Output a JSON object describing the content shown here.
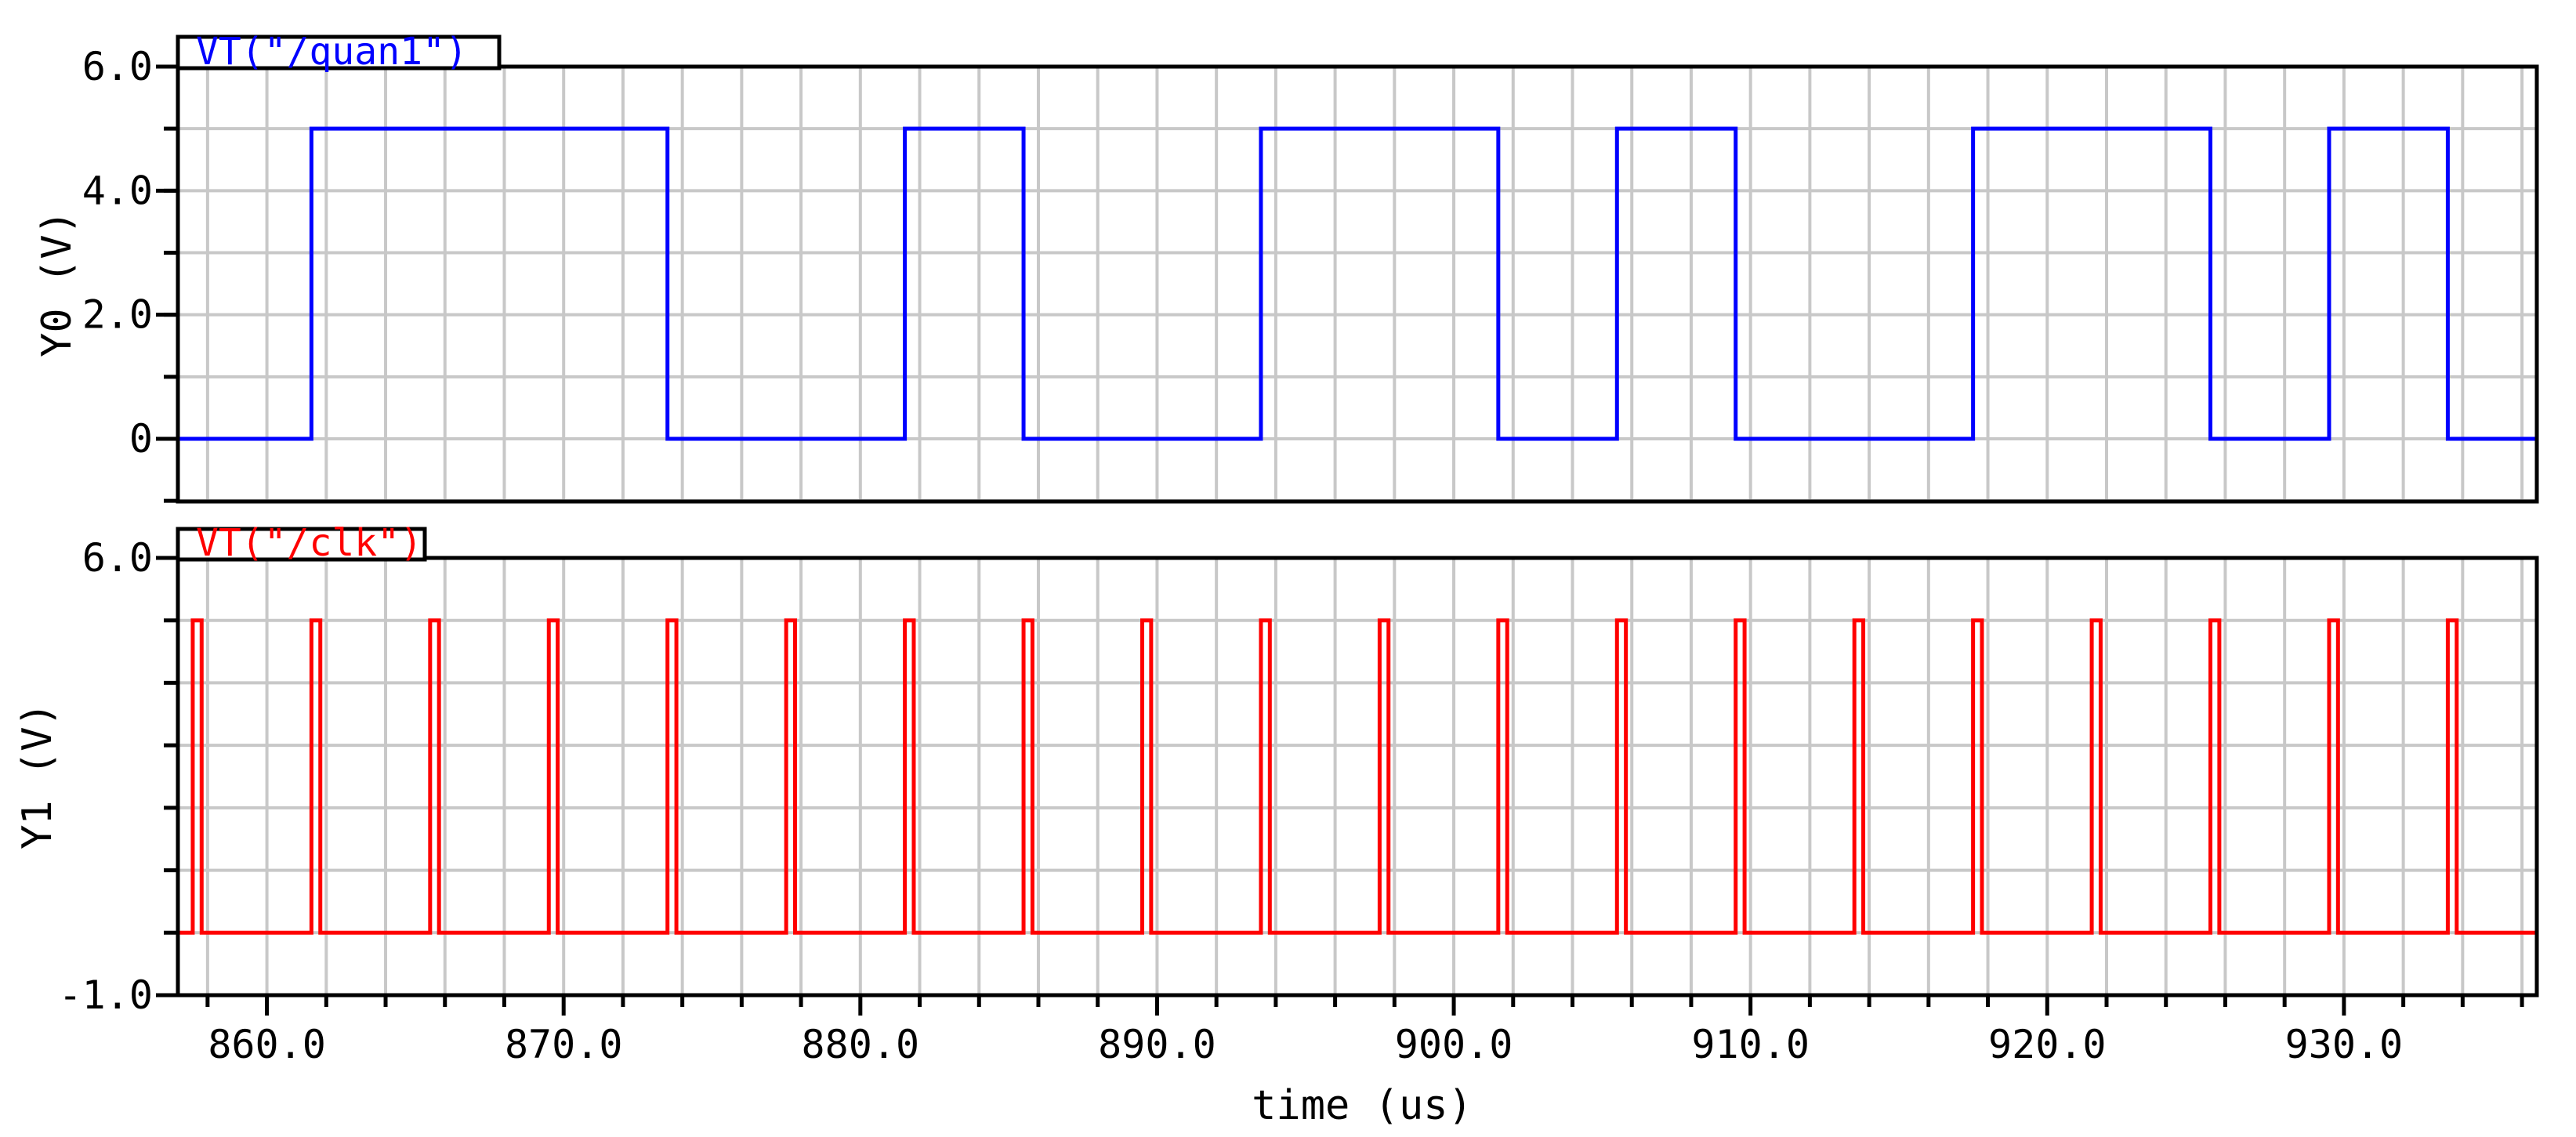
{
  "chart_data": [
    {
      "type": "line",
      "panel": "top",
      "ylabel": "Y0 (V)",
      "ylim": [
        -1.0,
        6.0
      ],
      "y_tick_labels": [
        "6.0",
        "4.0",
        "2.0",
        "0"
      ],
      "y_tick_values": [
        6.0,
        4.0,
        2.0,
        0
      ],
      "xlim": [
        857.0,
        936.5
      ],
      "grid": true,
      "series": [
        {
          "name": "VT(\"/quan1\")",
          "color": "#0000ff",
          "x": [
            857.0,
            861.5,
            861.5,
            873.5,
            873.5,
            881.5,
            881.5,
            885.5,
            885.5,
            893.5,
            893.5,
            901.5,
            901.5,
            905.5,
            905.5,
            909.5,
            909.5,
            917.5,
            917.5,
            925.5,
            925.5,
            929.5,
            929.5,
            933.5,
            933.5,
            936.5
          ],
          "y": [
            0.0,
            0.0,
            5.0,
            5.0,
            0.0,
            0.0,
            5.0,
            5.0,
            0.0,
            0.0,
            5.0,
            5.0,
            0.0,
            0.0,
            5.0,
            5.0,
            0.0,
            0.0,
            5.0,
            5.0,
            0.0,
            0.0,
            5.0,
            5.0,
            0.0,
            0.0
          ]
        }
      ]
    },
    {
      "type": "line",
      "panel": "bottom",
      "ylabel": "Y1 (V)",
      "xlabel": "time (us)",
      "ylim": [
        -1.0,
        6.0
      ],
      "y_tick_labels": [
        "6.0",
        "-1.0"
      ],
      "y_tick_values": [
        6.0,
        -1.0
      ],
      "xlim": [
        857.0,
        936.5
      ],
      "x_tick_labels": [
        "860.0",
        "870.0",
        "880.0",
        "890.0",
        "900.0",
        "910.0",
        "920.0",
        "930.0"
      ],
      "x_tick_values": [
        860.0,
        870.0,
        880.0,
        890.0,
        900.0,
        910.0,
        920.0,
        930.0
      ],
      "grid": true,
      "series": [
        {
          "name": "VT(\"/clk\")",
          "color": "#ff0000",
          "pulse_starts": [
            857.5,
            861.5,
            865.5,
            869.5,
            873.5,
            877.5,
            881.5,
            885.5,
            889.5,
            893.5,
            897.5,
            901.5,
            905.5,
            909.5,
            913.5,
            917.5,
            921.5,
            925.5,
            929.5,
            933.5
          ],
          "pulse_width": 0.3,
          "high": 5.0,
          "low": 0.0
        }
      ]
    }
  ]
}
